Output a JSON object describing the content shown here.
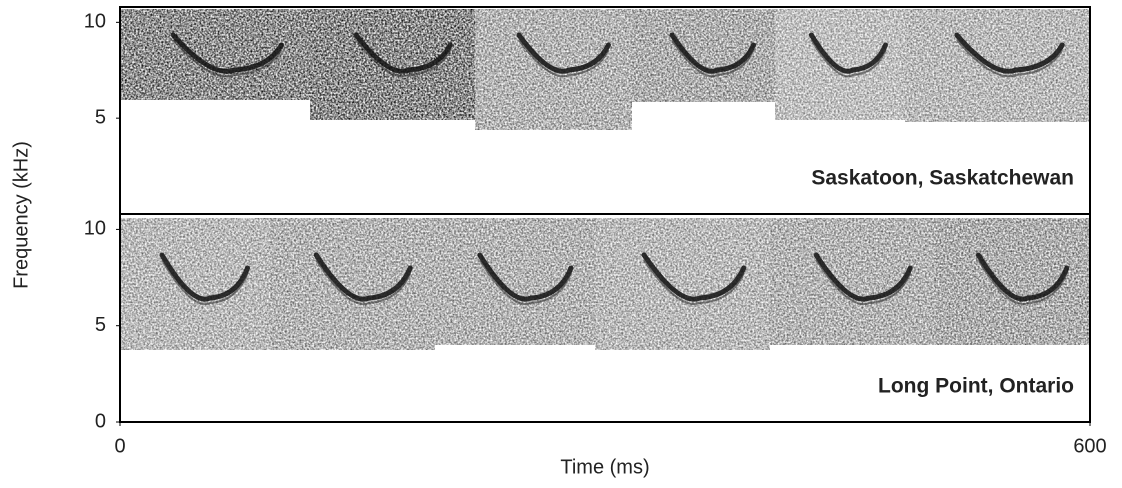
{
  "chart_data": {
    "type": "spectrogram",
    "y_label": "Frequency (kHz)",
    "x_label": "Time (ms)",
    "xlim": [
      0,
      600
    ],
    "xticks": [
      0,
      600
    ],
    "panels": [
      {
        "label": "Saskatoon, Saskatchewan",
        "ylim": [
          0,
          10.8
        ],
        "yticks": [
          5,
          10
        ]
      },
      {
        "label": "Long Point, Ontario",
        "ylim": [
          0,
          10.8
        ],
        "yticks": [
          0,
          5,
          10
        ]
      }
    ]
  }
}
